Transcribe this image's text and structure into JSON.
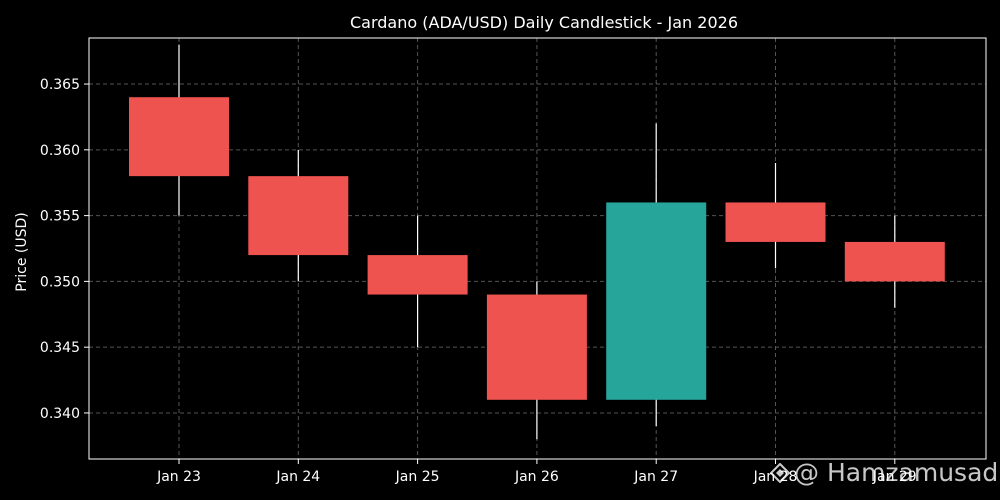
{
  "chart_data": {
    "type": "candlestick",
    "title": "Cardano (ADA/USD) Daily Candlestick - Jan 2026",
    "xlabel": "",
    "ylabel": "Price (USD)",
    "ylim": [
      0.3365,
      0.3685
    ],
    "yticks": [
      "0.340",
      "0.345",
      "0.350",
      "0.355",
      "0.360",
      "0.365"
    ],
    "grid": true,
    "categories": [
      "Jan 23",
      "Jan 24",
      "Jan 25",
      "Jan 26",
      "Jan 27",
      "Jan 28",
      "Jan 29"
    ],
    "open": [
      0.364,
      0.358,
      0.352,
      0.349,
      0.341,
      0.356,
      0.353
    ],
    "high": [
      0.368,
      0.36,
      0.355,
      0.35,
      0.362,
      0.359,
      0.355
    ],
    "low": [
      0.355,
      0.35,
      0.345,
      0.338,
      0.339,
      0.351,
      0.348
    ],
    "close": [
      0.358,
      0.352,
      0.349,
      0.341,
      0.356,
      0.353,
      0.35
    ]
  },
  "colors": {
    "background": "#000000",
    "up": "#26a69a",
    "down": "#ef5350",
    "wick": "#ffffff",
    "grid": "#555555",
    "axis": "#ffffff",
    "text": "#ffffff"
  },
  "watermark": {
    "text": "@ Hamzamusadi",
    "icon": "logo-diamond-icon"
  }
}
